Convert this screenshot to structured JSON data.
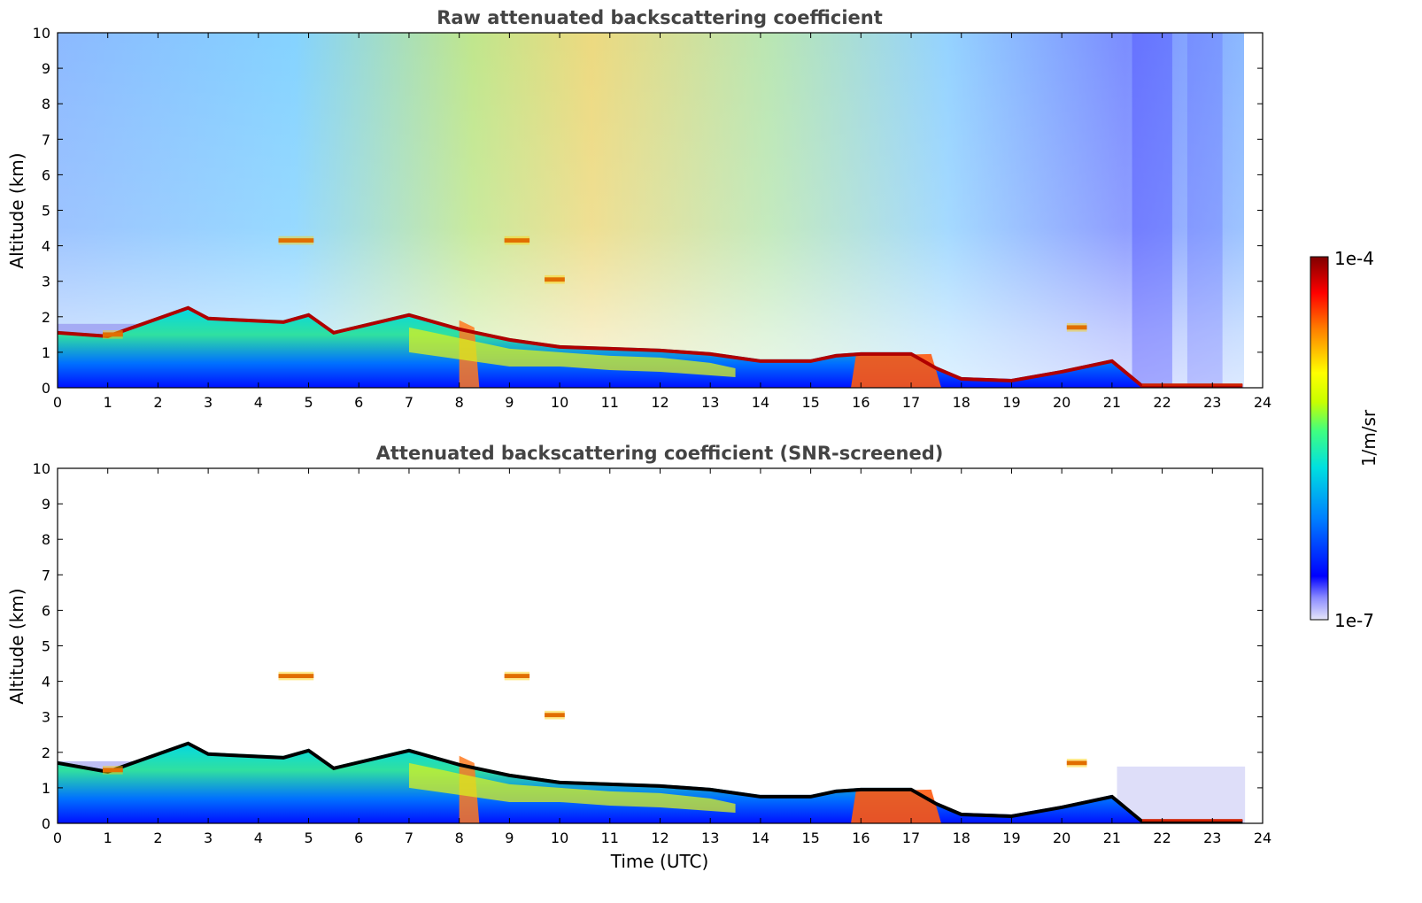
{
  "chart_data": [
    {
      "type": "heatmap",
      "title": "Raw attenuated backscattering coefficient",
      "xlabel": "",
      "ylabel": "Altitude (km)",
      "xlim": [
        0,
        24
      ],
      "ylim": [
        0,
        10
      ],
      "xticks": [
        "0",
        "1",
        "2",
        "3",
        "4",
        "5",
        "6",
        "7",
        "8",
        "9",
        "10",
        "11",
        "12",
        "13",
        "14",
        "15",
        "16",
        "17",
        "18",
        "19",
        "20",
        "21",
        "22",
        "23",
        "24"
      ],
      "yticks": [
        "0",
        "1",
        "2",
        "3",
        "4",
        "5",
        "6",
        "7",
        "8",
        "9",
        "10"
      ],
      "data_end_time": 23.65,
      "screened": false,
      "grid": false,
      "aerosol_layer_top_km": [
        [
          0,
          1.6
        ],
        [
          1,
          1.5
        ],
        [
          2.6,
          2.3
        ],
        [
          3,
          2.0
        ],
        [
          4.5,
          1.9
        ],
        [
          5,
          2.1
        ],
        [
          5.5,
          1.6
        ],
        [
          7,
          2.1
        ],
        [
          8,
          1.7
        ],
        [
          9,
          1.4
        ],
        [
          10,
          1.2
        ],
        [
          11,
          1.15
        ],
        [
          12,
          1.1
        ],
        [
          13,
          1.0
        ],
        [
          14,
          0.8
        ],
        [
          15,
          0.8
        ],
        [
          15.5,
          0.95
        ],
        [
          16,
          1.0
        ],
        [
          17,
          1.0
        ],
        [
          17.5,
          0.6
        ],
        [
          18,
          0.3
        ],
        [
          19,
          0.25
        ],
        [
          20,
          0.5
        ],
        [
          21,
          0.8
        ],
        [
          21.6,
          0.1
        ],
        [
          23.6,
          0.1
        ]
      ],
      "cloud_layers": [
        {
          "t0": 4.4,
          "t1": 5.1,
          "alt_km": 4.15
        },
        {
          "t0": 8.9,
          "t1": 9.4,
          "alt_km": 4.15
        },
        {
          "t0": 9.7,
          "t1": 10.1,
          "alt_km": 3.05
        },
        {
          "t0": 0.9,
          "t1": 1.3,
          "alt_km": 1.5
        },
        {
          "t0": 20.1,
          "t1": 20.5,
          "alt_km": 1.7
        }
      ]
    },
    {
      "type": "heatmap",
      "title": "Attenuated backscattering coefficient (SNR-screened)",
      "xlabel": "Time (UTC)",
      "ylabel": "Altitude (km)",
      "xlim": [
        0,
        24
      ],
      "ylim": [
        0,
        10
      ],
      "xticks": [
        "0",
        "1",
        "2",
        "3",
        "4",
        "5",
        "6",
        "7",
        "8",
        "9",
        "10",
        "11",
        "12",
        "13",
        "14",
        "15",
        "16",
        "17",
        "18",
        "19",
        "20",
        "21",
        "22",
        "23",
        "24"
      ],
      "yticks": [
        "0",
        "1",
        "2",
        "3",
        "4",
        "5",
        "6",
        "7",
        "8",
        "9",
        "10"
      ],
      "data_end_time": 23.65,
      "screened": true,
      "grid": false,
      "aerosol_layer_top_km": [
        [
          0,
          1.75
        ],
        [
          1,
          1.5
        ],
        [
          2.6,
          2.3
        ],
        [
          3,
          2.0
        ],
        [
          4.5,
          1.9
        ],
        [
          5,
          2.1
        ],
        [
          5.5,
          1.6
        ],
        [
          7,
          2.1
        ],
        [
          8,
          1.7
        ],
        [
          9,
          1.4
        ],
        [
          10,
          1.2
        ],
        [
          11,
          1.15
        ],
        [
          12,
          1.1
        ],
        [
          13,
          1.0
        ],
        [
          14,
          0.8
        ],
        [
          15,
          0.8
        ],
        [
          15.5,
          0.95
        ],
        [
          16,
          1.0
        ],
        [
          17,
          1.0
        ],
        [
          17.5,
          0.6
        ],
        [
          18,
          0.3
        ],
        [
          19,
          0.25
        ],
        [
          20,
          0.5
        ],
        [
          21,
          0.8
        ],
        [
          21.6,
          0.1
        ],
        [
          23.6,
          0.1
        ]
      ],
      "cloud_layers": [
        {
          "t0": 4.4,
          "t1": 5.1,
          "alt_km": 4.15
        },
        {
          "t0": 8.9,
          "t1": 9.4,
          "alt_km": 4.15
        },
        {
          "t0": 9.7,
          "t1": 10.1,
          "alt_km": 3.05
        },
        {
          "t0": 0.9,
          "t1": 1.3,
          "alt_km": 1.5
        },
        {
          "t0": 20.1,
          "t1": 20.5,
          "alt_km": 1.7
        }
      ]
    }
  ],
  "colorbar": {
    "label": "1/m/sr",
    "max_label": "1e-4",
    "min_label": "1e-7",
    "colormap": [
      "#e6e6fa",
      "#8c8cff",
      "#0000ff",
      "#0080ff",
      "#00e0e0",
      "#40ff80",
      "#c8ff00",
      "#ffff00",
      "#ff8000",
      "#ff0000",
      "#800000"
    ]
  }
}
